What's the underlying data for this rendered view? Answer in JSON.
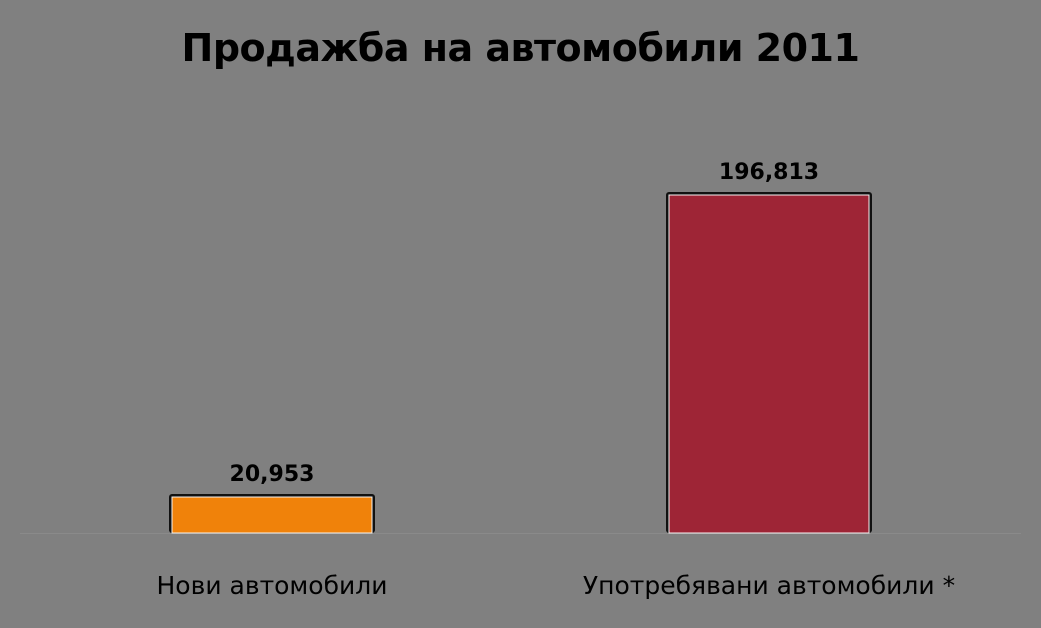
{
  "chart_data": {
    "type": "bar",
    "title": "Продажба на автомобили 2011",
    "categories": [
      "Нови автомобили",
      "Употребявани автомобили *"
    ],
    "values": [
      20953,
      196813
    ],
    "value_labels": [
      "20,953",
      "196,813"
    ],
    "colors": [
      "#F0820A",
      "#9E2536"
    ],
    "xlabel": "",
    "ylabel": "",
    "grid": false,
    "legend": "none"
  }
}
